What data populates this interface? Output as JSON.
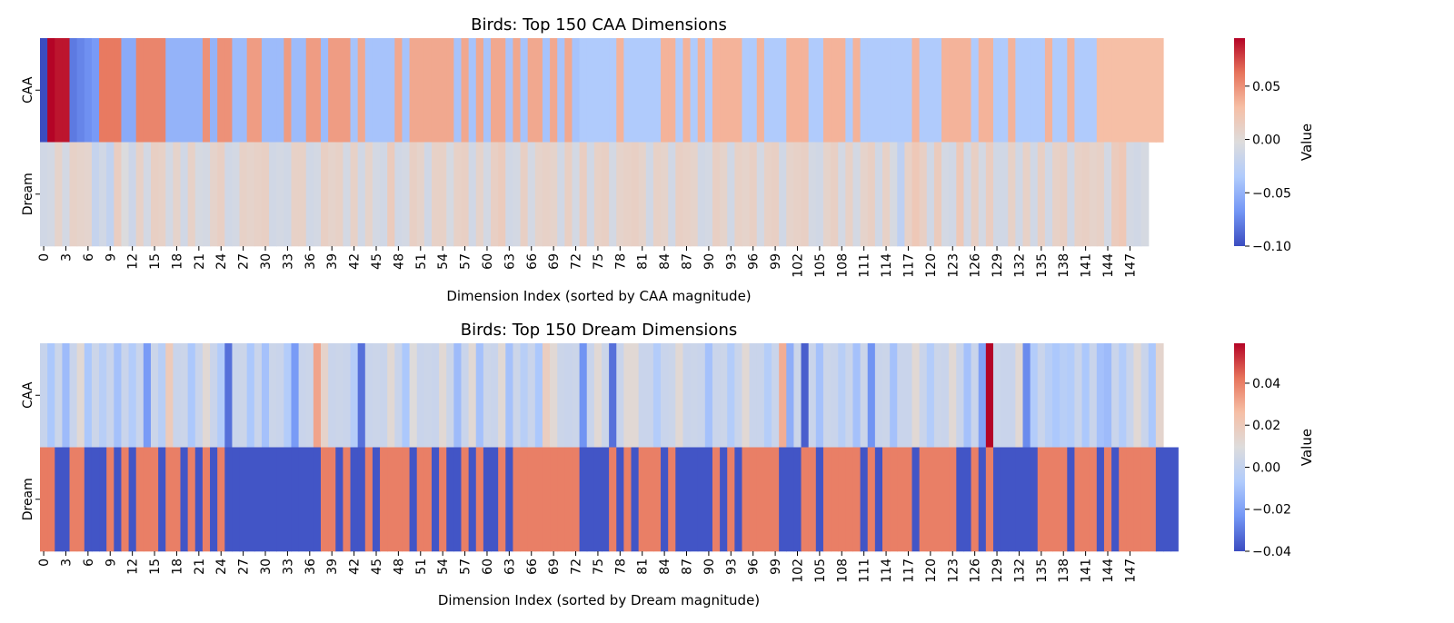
{
  "colors": {
    "cmap": [
      "#3b4cc0",
      "#7396f5",
      "#b0cbfc",
      "#dddcdc",
      "#f6bfa6",
      "#e7745b",
      "#b40426"
    ]
  },
  "chart_data": [
    {
      "type": "heatmap",
      "title": "Birds: Top 150 CAA Dimensions",
      "xlabel": "Dimension Index (sorted by CAA magnitude)",
      "ylabel": "",
      "rows": [
        "CAA",
        "Dream"
      ],
      "x_ticks": [
        0,
        3,
        6,
        9,
        12,
        15,
        18,
        21,
        24,
        27,
        30,
        33,
        36,
        39,
        42,
        45,
        48,
        51,
        54,
        57,
        60,
        63,
        66,
        69,
        72,
        75,
        78,
        81,
        84,
        87,
        90,
        93,
        96,
        99,
        102,
        105,
        108,
        111,
        114,
        117,
        120,
        123,
        126,
        129,
        132,
        135,
        138,
        141,
        144,
        147
      ],
      "colorbar": {
        "label": "Value",
        "vmin": -0.1,
        "vmax": 0.095,
        "ticks": [
          -0.1,
          -0.05,
          0.0,
          0.05
        ]
      },
      "values": [
        [
          -0.1,
          0.095,
          0.09,
          0.09,
          -0.08,
          -0.075,
          -0.07,
          -0.065,
          0.06,
          0.06,
          0.06,
          -0.055,
          -0.055,
          0.055,
          0.055,
          0.055,
          0.055,
          -0.05,
          -0.05,
          -0.05,
          -0.05,
          -0.05,
          0.05,
          -0.05,
          0.05,
          0.05,
          -0.045,
          -0.045,
          0.045,
          0.045,
          -0.045,
          -0.045,
          -0.045,
          0.045,
          -0.045,
          -0.045,
          0.045,
          0.045,
          -0.045,
          0.045,
          0.045,
          0.045,
          -0.04,
          0.04,
          -0.04,
          -0.04,
          -0.04,
          -0.04,
          0.04,
          -0.04,
          0.04,
          0.04,
          0.04,
          0.04,
          0.04,
          0.04,
          -0.04,
          0.04,
          -0.04,
          0.04,
          -0.04,
          0.04,
          0.04,
          -0.04,
          0.04,
          -0.04,
          0.04,
          0.04,
          -0.04,
          0.04,
          -0.04,
          0.04,
          -0.04,
          -0.035,
          -0.035,
          -0.035,
          -0.035,
          -0.035,
          0.035,
          -0.035,
          -0.035,
          -0.035,
          -0.035,
          -0.035,
          0.035,
          0.035,
          -0.035,
          0.035,
          -0.035,
          0.035,
          -0.035,
          0.035,
          0.035,
          0.035,
          0.035,
          -0.035,
          -0.035,
          0.035,
          -0.035,
          -0.035,
          -0.035,
          0.035,
          0.035,
          0.035,
          -0.035,
          -0.035,
          0.035,
          0.035,
          0.035,
          -0.035,
          0.035,
          -0.035,
          -0.035,
          -0.035,
          -0.035,
          -0.035,
          -0.035,
          -0.035,
          0.035,
          -0.035,
          -0.035,
          -0.035,
          0.035,
          0.035,
          0.035,
          0.035,
          -0.035,
          0.035,
          0.035,
          -0.035,
          -0.035,
          0.035,
          -0.035,
          -0.035,
          -0.035,
          -0.035,
          0.035,
          -0.035,
          -0.035,
          0.035,
          -0.035,
          -0.035,
          -0.035,
          0.03,
          0.03,
          0.03,
          0.03,
          0.03,
          0.03,
          0.03,
          0.03,
          0.03
        ],
        [
          -0.012,
          -0.01,
          0.008,
          -0.01,
          0.01,
          0.008,
          0.006,
          -0.02,
          -0.012,
          -0.022,
          0.014,
          -0.004,
          -0.015,
          0.01,
          -0.01,
          0.012,
          0.01,
          -0.01,
          0.008,
          -0.012,
          0.01,
          -0.008,
          -0.01,
          0.008,
          0.012,
          -0.012,
          -0.01,
          0.01,
          0.008,
          0.01,
          0.012,
          -0.012,
          -0.01,
          -0.012,
          0.01,
          0.01,
          -0.012,
          -0.01,
          0.012,
          0.008,
          0.01,
          -0.01,
          0.01,
          -0.012,
          0.008,
          -0.01,
          -0.012,
          0.016,
          -0.012,
          -0.01,
          0.012,
          0.008,
          -0.012,
          0.01,
          0.01,
          -0.008,
          0.01,
          0.012,
          -0.012,
          0.008,
          -0.01,
          0.012,
          0.016,
          -0.012,
          -0.01,
          0.012,
          -0.01,
          0.008,
          0.01,
          0.008,
          -0.012,
          0.012,
          -0.01,
          0.014,
          -0.012,
          0.01,
          0.012,
          -0.01,
          0.008,
          0.01,
          0.012,
          0.008,
          -0.012,
          0.01,
          0.008,
          -0.012,
          0.012,
          0.01,
          0.008,
          -0.012,
          -0.01,
          0.012,
          0.008,
          -0.012,
          0.01,
          0.008,
          0.012,
          -0.01,
          0.01,
          0.012,
          -0.012,
          0.008,
          0.01,
          0.012,
          -0.01,
          -0.012,
          0.008,
          0.012,
          -0.01,
          0.01,
          -0.01,
          0.008,
          0.012,
          -0.012,
          0.01,
          -0.008,
          -0.025,
          0.01,
          0.02,
          0.012,
          -0.012,
          0.016,
          -0.01,
          -0.012,
          0.02,
          -0.012,
          0.012,
          -0.01,
          0.014,
          -0.012,
          -0.012,
          0.01,
          -0.012,
          0.01,
          -0.012,
          0.012,
          -0.012,
          0.01,
          0.012,
          -0.012,
          0.01,
          0.012,
          0.008,
          0.01,
          -0.01,
          0.016,
          0.02,
          -0.01,
          -0.012,
          -0.008
        ]
      ]
    },
    {
      "type": "heatmap",
      "title": "Birds: Top 150 Dream Dimensions",
      "xlabel": "Dimension Index (sorted by Dream magnitude)",
      "ylabel": "",
      "rows": [
        "CAA",
        "Dream"
      ],
      "x_ticks": [
        0,
        3,
        6,
        9,
        12,
        15,
        18,
        21,
        24,
        27,
        30,
        33,
        36,
        39,
        42,
        45,
        48,
        51,
        54,
        57,
        60,
        63,
        66,
        69,
        72,
        75,
        78,
        81,
        84,
        87,
        90,
        93,
        96,
        99,
        102,
        105,
        108,
        111,
        114,
        117,
        120,
        123,
        126,
        129,
        132,
        135,
        138,
        141,
        144,
        147
      ],
      "colorbar": {
        "label": "Value",
        "vmin": -0.04,
        "vmax": 0.059,
        "ticks": [
          -0.04,
          -0.02,
          0.0,
          0.02,
          0.04
        ]
      },
      "values": [
        [
          0.001,
          -0.008,
          0.003,
          -0.012,
          0.002,
          0.012,
          -0.008,
          0.003,
          -0.004,
          0.002,
          -0.01,
          0.002,
          -0.006,
          0.002,
          -0.022,
          0.003,
          -0.004,
          0.02,
          0.002,
          0.003,
          -0.008,
          0.002,
          0.012,
          0.002,
          -0.006,
          -0.032,
          0.002,
          0.003,
          -0.008,
          0.002,
          -0.01,
          0.003,
          0.002,
          -0.006,
          -0.022,
          0.002,
          0.003,
          0.032,
          0.015,
          0.002,
          0.003,
          0.002,
          -0.005,
          -0.032,
          0.002,
          0.003,
          0.002,
          0.012,
          0.002,
          -0.008,
          0.01,
          0.002,
          0.003,
          0.002,
          0.012,
          0.003,
          -0.012,
          0.002,
          0.012,
          -0.01,
          0.003,
          0.002,
          0.012,
          -0.01,
          0.003,
          -0.004,
          0.002,
          -0.008,
          0.018,
          0.012,
          0.003,
          0.002,
          0.003,
          -0.024,
          0.002,
          0.012,
          0.003,
          -0.032,
          0.002,
          0.012,
          0.012,
          0.002,
          0.002,
          -0.006,
          0.002,
          0.003,
          0.012,
          0.002,
          0.003,
          0.002,
          -0.01,
          0.002,
          0.003,
          -0.006,
          0.002,
          0.012,
          0.002,
          0.002,
          -0.005,
          0.002,
          0.03,
          -0.016,
          0.003,
          -0.036,
          0.002,
          -0.01,
          0.003,
          0.002,
          -0.004,
          0.002,
          -0.01,
          0.003,
          -0.024,
          0.002,
          0.003,
          -0.01,
          0.002,
          0.002,
          0.012,
          0.002,
          -0.006,
          0.003,
          0.002,
          0.012,
          0.002,
          -0.01,
          0.002,
          -0.02,
          0.059,
          0.003,
          0.002,
          0.002,
          0.012,
          -0.026,
          -0.006,
          0.002,
          -0.004,
          -0.008,
          -0.004,
          -0.006,
          0.002,
          -0.008,
          0.002,
          -0.01,
          -0.012,
          0.002,
          -0.006,
          0.002,
          0.012,
          0.002,
          -0.008,
          0.014
        ],
        [
          0.041,
          0.041,
          -0.038,
          -0.038,
          0.04,
          0.04,
          -0.038,
          -0.038,
          -0.038,
          0.04,
          -0.038,
          0.04,
          -0.038,
          0.04,
          0.04,
          0.04,
          -0.038,
          0.04,
          0.04,
          -0.038,
          0.04,
          -0.038,
          0.04,
          -0.038,
          0.04,
          -0.038,
          -0.038,
          -0.038,
          -0.038,
          -0.038,
          -0.038,
          -0.038,
          -0.038,
          -0.038,
          -0.038,
          -0.038,
          -0.038,
          -0.038,
          0.04,
          0.04,
          -0.038,
          0.04,
          -0.038,
          -0.038,
          0.04,
          -0.038,
          0.04,
          0.04,
          0.04,
          0.04,
          -0.038,
          0.04,
          0.04,
          -0.038,
          0.04,
          -0.038,
          -0.038,
          0.04,
          -0.038,
          0.04,
          -0.038,
          -0.038,
          0.04,
          -0.038,
          0.04,
          0.04,
          0.04,
          0.04,
          0.04,
          0.04,
          0.04,
          0.04,
          0.04,
          -0.038,
          -0.038,
          -0.038,
          -0.038,
          0.04,
          -0.038,
          0.04,
          -0.038,
          0.04,
          0.04,
          0.04,
          -0.038,
          0.04,
          -0.038,
          -0.038,
          -0.038,
          -0.038,
          -0.038,
          0.04,
          -0.038,
          0.04,
          -0.038,
          0.04,
          0.04,
          0.04,
          0.04,
          0.04,
          -0.038,
          -0.038,
          -0.038,
          0.04,
          0.04,
          -0.038,
          0.04,
          0.04,
          0.04,
          0.04,
          0.04,
          -0.038,
          0.04,
          -0.038,
          0.04,
          0.04,
          0.04,
          0.04,
          -0.038,
          0.04,
          0.04,
          0.04,
          0.04,
          0.04,
          -0.038,
          -0.038,
          0.04,
          -0.038,
          0.04,
          -0.038,
          -0.038,
          -0.038,
          -0.038,
          -0.038,
          -0.038,
          0.04,
          0.04,
          0.04,
          0.04,
          -0.038,
          0.04,
          0.04,
          0.04,
          -0.038,
          0.04,
          -0.038,
          0.04,
          0.04,
          0.04,
          0.04,
          0.04,
          -0.038,
          -0.038,
          -0.038
        ]
      ]
    }
  ]
}
